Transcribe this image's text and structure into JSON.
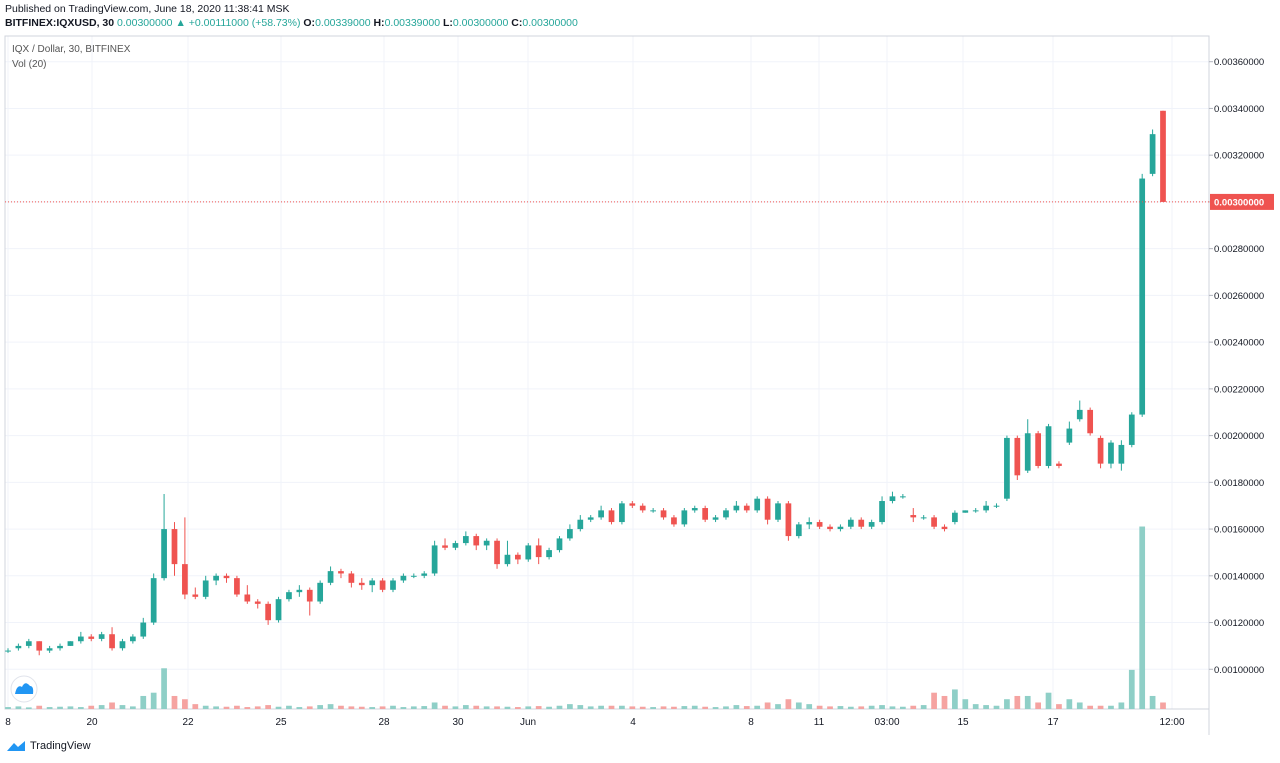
{
  "header": {
    "published": "Published on TradingView.com, June 18, 2020 11:38:41 MSK",
    "symbol": "BITFINEX:IQXUSD, 30",
    "last": "0.00300000",
    "arrow": "▲",
    "change": "+0.00111000 (+58.73%)",
    "o_label": "O:",
    "o_value": "0.00339000",
    "h_label": "H:",
    "h_value": "0.00339000",
    "l_label": "L:",
    "l_value": "0.00300000",
    "c_label": "C:",
    "c_value": "0.00300000"
  },
  "pane": {
    "title": "IQX / Dollar, 30, BITFINEX",
    "vol_label": "Vol (20)"
  },
  "footer": {
    "brand": "TradingView"
  },
  "colors": {
    "up": "#26a69a",
    "down": "#ef5350",
    "vol_up": "#8fcfc7",
    "vol_down": "#f5a3a1",
    "grid": "#f0f3fa",
    "price_line": "#ef5350"
  },
  "chart_data": {
    "type": "candlestick",
    "ylim": [
      0.00083,
      0.00371
    ],
    "y_ticks": [
      "0.00360000",
      "0.00340000",
      "0.00320000",
      "0.00300000",
      "0.00280000",
      "0.00260000",
      "0.00240000",
      "0.00220000",
      "0.00200000",
      "0.00180000",
      "0.00160000",
      "0.00140000",
      "0.00120000",
      "0.00100000"
    ],
    "current_price": "0.00300000",
    "x_ticks": [
      "8",
      "20",
      "22",
      "25",
      "28",
      "30",
      "Jun",
      "4",
      "8",
      "11",
      "03:00",
      "15",
      "17",
      "12:00"
    ],
    "candles": [
      [
        0.00108,
        0.00109,
        0.00107,
        0.00108
      ],
      [
        0.00109,
        0.00111,
        0.00108,
        0.0011
      ],
      [
        0.0011,
        0.00113,
        0.00109,
        0.00112
      ],
      [
        0.00112,
        0.00112,
        0.00106,
        0.00108
      ],
      [
        0.00108,
        0.0011,
        0.00107,
        0.00109
      ],
      [
        0.00109,
        0.00111,
        0.00108,
        0.0011
      ],
      [
        0.0011,
        0.00112,
        0.0011,
        0.00112
      ],
      [
        0.00112,
        0.00116,
        0.00111,
        0.00114
      ],
      [
        0.00114,
        0.00115,
        0.00112,
        0.00113
      ],
      [
        0.00113,
        0.00116,
        0.00112,
        0.00115
      ],
      [
        0.00115,
        0.00118,
        0.00108,
        0.00109
      ],
      [
        0.00109,
        0.00113,
        0.00108,
        0.00112
      ],
      [
        0.00112,
        0.00115,
        0.00111,
        0.00114
      ],
      [
        0.00114,
        0.00122,
        0.00113,
        0.0012
      ],
      [
        0.0012,
        0.00141,
        0.00119,
        0.00139
      ],
      [
        0.00139,
        0.00175,
        0.00138,
        0.0016
      ],
      [
        0.0016,
        0.00163,
        0.0014,
        0.00145
      ],
      [
        0.00145,
        0.00165,
        0.0013,
        0.00132
      ],
      [
        0.00132,
        0.00135,
        0.0013,
        0.00131
      ],
      [
        0.00131,
        0.0014,
        0.0013,
        0.00138
      ],
      [
        0.00138,
        0.00141,
        0.00136,
        0.0014
      ],
      [
        0.0014,
        0.00141,
        0.00137,
        0.00139
      ],
      [
        0.00139,
        0.0014,
        0.00131,
        0.00132
      ],
      [
        0.00132,
        0.00136,
        0.00128,
        0.00129
      ],
      [
        0.00129,
        0.0013,
        0.00126,
        0.00128
      ],
      [
        0.00128,
        0.00129,
        0.00119,
        0.00121
      ],
      [
        0.00121,
        0.00131,
        0.0012,
        0.0013
      ],
      [
        0.0013,
        0.00134,
        0.00129,
        0.00133
      ],
      [
        0.00133,
        0.00136,
        0.00131,
        0.00134
      ],
      [
        0.00134,
        0.00135,
        0.00123,
        0.00129
      ],
      [
        0.00129,
        0.00138,
        0.00128,
        0.00137
      ],
      [
        0.00137,
        0.00144,
        0.00136,
        0.00142
      ],
      [
        0.00142,
        0.00143,
        0.00139,
        0.00141
      ],
      [
        0.00141,
        0.00142,
        0.00135,
        0.00137
      ],
      [
        0.00137,
        0.00139,
        0.00134,
        0.00136
      ],
      [
        0.00136,
        0.00139,
        0.00133,
        0.00138
      ],
      [
        0.00138,
        0.00139,
        0.00133,
        0.00134
      ],
      [
        0.00134,
        0.00139,
        0.00133,
        0.00138
      ],
      [
        0.00138,
        0.00141,
        0.00137,
        0.0014
      ],
      [
        0.0014,
        0.00141,
        0.00139,
        0.0014
      ],
      [
        0.0014,
        0.00142,
        0.00139,
        0.00141
      ],
      [
        0.00141,
        0.00155,
        0.0014,
        0.00153
      ],
      [
        0.00153,
        0.00156,
        0.00151,
        0.00152
      ],
      [
        0.00152,
        0.00155,
        0.00151,
        0.00154
      ],
      [
        0.00154,
        0.00159,
        0.00153,
        0.00157
      ],
      [
        0.00157,
        0.00158,
        0.00151,
        0.00153
      ],
      [
        0.00153,
        0.00156,
        0.00151,
        0.00155
      ],
      [
        0.00155,
        0.00156,
        0.00143,
        0.00145
      ],
      [
        0.00145,
        0.00155,
        0.00144,
        0.00149
      ],
      [
        0.00149,
        0.0015,
        0.00145,
        0.00147
      ],
      [
        0.00147,
        0.00154,
        0.00146,
        0.00153
      ],
      [
        0.00153,
        0.00156,
        0.00145,
        0.00148
      ],
      [
        0.00148,
        0.00152,
        0.00147,
        0.00151
      ],
      [
        0.00151,
        0.00157,
        0.0015,
        0.00156
      ],
      [
        0.00156,
        0.00162,
        0.00155,
        0.0016
      ],
      [
        0.0016,
        0.00166,
        0.00159,
        0.00164
      ],
      [
        0.00164,
        0.00166,
        0.00163,
        0.00165
      ],
      [
        0.00165,
        0.0017,
        0.00164,
        0.00168
      ],
      [
        0.00168,
        0.00169,
        0.00162,
        0.00163
      ],
      [
        0.00163,
        0.00172,
        0.00162,
        0.00171
      ],
      [
        0.00171,
        0.00172,
        0.00169,
        0.0017
      ],
      [
        0.0017,
        0.00171,
        0.00167,
        0.00168
      ],
      [
        0.00168,
        0.00169,
        0.00167,
        0.00168
      ],
      [
        0.00168,
        0.00169,
        0.00164,
        0.00165
      ],
      [
        0.00165,
        0.00166,
        0.00161,
        0.00162
      ],
      [
        0.00162,
        0.00169,
        0.00161,
        0.00168
      ],
      [
        0.00168,
        0.0017,
        0.00167,
        0.00169
      ],
      [
        0.00169,
        0.0017,
        0.00163,
        0.00164
      ],
      [
        0.00164,
        0.00166,
        0.00163,
        0.00165
      ],
      [
        0.00165,
        0.00169,
        0.00164,
        0.00168
      ],
      [
        0.00168,
        0.00172,
        0.00167,
        0.0017
      ],
      [
        0.0017,
        0.00171,
        0.00167,
        0.00168
      ],
      [
        0.00168,
        0.00174,
        0.00167,
        0.00173
      ],
      [
        0.00173,
        0.00174,
        0.00162,
        0.00164
      ],
      [
        0.00164,
        0.00172,
        0.00163,
        0.00171
      ],
      [
        0.00171,
        0.00172,
        0.00155,
        0.00157
      ],
      [
        0.00157,
        0.00163,
        0.00156,
        0.00162
      ],
      [
        0.00162,
        0.00165,
        0.0016,
        0.00163
      ],
      [
        0.00163,
        0.00164,
        0.0016,
        0.00161
      ],
      [
        0.00161,
        0.00162,
        0.00159,
        0.0016
      ],
      [
        0.0016,
        0.00162,
        0.00159,
        0.00161
      ],
      [
        0.00161,
        0.00165,
        0.0016,
        0.00164
      ],
      [
        0.00164,
        0.00165,
        0.0016,
        0.00161
      ],
      [
        0.00161,
        0.00164,
        0.0016,
        0.00163
      ],
      [
        0.00163,
        0.00174,
        0.00162,
        0.00172
      ],
      [
        0.00172,
        0.00176,
        0.00171,
        0.00174
      ],
      [
        0.00174,
        0.00175,
        0.00173,
        0.00174
      ],
      [
        0.00166,
        0.00169,
        0.00163,
        0.00165
      ],
      [
        0.00165,
        0.00166,
        0.00164,
        0.00165
      ],
      [
        0.00165,
        0.00166,
        0.0016,
        0.00161
      ],
      [
        0.00161,
        0.00162,
        0.00159,
        0.0016
      ],
      [
        0.00163,
        0.00168,
        0.00162,
        0.00167
      ],
      [
        0.00167,
        0.00168,
        0.00167,
        0.00168
      ],
      [
        0.00168,
        0.00169,
        0.00167,
        0.00168
      ],
      [
        0.00168,
        0.00172,
        0.00167,
        0.0017
      ],
      [
        0.0017,
        0.00171,
        0.00169,
        0.0017
      ],
      [
        0.00173,
        0.002,
        0.00172,
        0.00199
      ],
      [
        0.00199,
        0.002,
        0.00181,
        0.00183
      ],
      [
        0.00185,
        0.00207,
        0.00184,
        0.00201
      ],
      [
        0.00201,
        0.00202,
        0.00186,
        0.00187
      ],
      [
        0.00187,
        0.00205,
        0.00186,
        0.00204
      ],
      [
        0.00188,
        0.00189,
        0.00186,
        0.00187
      ],
      [
        0.00197,
        0.00206,
        0.00196,
        0.00203
      ],
      [
        0.00207,
        0.00215,
        0.00206,
        0.00211
      ],
      [
        0.00211,
        0.00212,
        0.002,
        0.00201
      ],
      [
        0.00199,
        0.002,
        0.00186,
        0.00188
      ],
      [
        0.00188,
        0.00198,
        0.00186,
        0.00197
      ],
      [
        0.00188,
        0.00198,
        0.00185,
        0.00196
      ],
      [
        0.00196,
        0.0021,
        0.00195,
        0.00209
      ],
      [
        0.00209,
        0.00312,
        0.00208,
        0.0031
      ],
      [
        0.00312,
        0.00331,
        0.00311,
        0.00329
      ],
      [
        0.00339,
        0.00339,
        0.003,
        0.003
      ]
    ],
    "volume": [
      4.1e-08,
      5.5e-08,
      3.4e-08,
      6.9e-08,
      4.1e-08,
      4.8e-08,
      5.5e-08,
      4.1e-08,
      6.9e-08,
      8.3e-08,
      1.38e-07,
      8.3e-08,
      5.5e-08,
      2.76e-07,
      3.45e-07,
      8.62e-07,
      2.76e-07,
      2.07e-07,
      1.03e-07,
      6.9e-08,
      5.5e-08,
      4.8e-08,
      6.9e-08,
      4.1e-08,
      5.5e-08,
      8.3e-08,
      4.8e-08,
      6.9e-08,
      4.1e-08,
      5.5e-08,
      8.3e-08,
      1.03e-07,
      6.9e-08,
      5.5e-08,
      4.8e-08,
      4.1e-08,
      5.5e-08,
      6.9e-08,
      4.1e-08,
      5.5e-08,
      6.2e-08,
      1.38e-07,
      6.9e-08,
      5.5e-08,
      8.3e-08,
      6.9e-08,
      5.5e-08,
      5.5e-08,
      4.8e-08,
      4.1e-08,
      5.5e-08,
      6.2e-08,
      4.8e-08,
      6.9e-08,
      1.03e-07,
      8.3e-08,
      5.5e-08,
      6.9e-08,
      6.9e-08,
      6.9e-08,
      5.5e-08,
      4.8e-08,
      4.1e-08,
      5.5e-08,
      4.8e-08,
      6.2e-08,
      6.9e-08,
      4.8e-08,
      4.1e-08,
      5.5e-08,
      8.3e-08,
      6.2e-08,
      6.9e-08,
      1.38e-07,
      1.03e-07,
      2.07e-07,
      1.38e-07,
      1.03e-07,
      6.9e-08,
      5.5e-08,
      6.2e-08,
      4.8e-08,
      5.5e-08,
      6.9e-08,
      8.3e-08,
      5.5e-08,
      4.8e-08,
      6.9e-08,
      8.3e-08,
      3.45e-07,
      2.76e-07,
      4.14e-07,
      2.07e-07,
      1.03e-07,
      8.3e-08,
      6.9e-08,
      2.07e-07,
      2.76e-07,
      2.76e-07,
      1.38e-07,
      3.45e-07,
      1.03e-07,
      2.07e-07,
      1.38e-07,
      6.9e-08,
      6.9e-08,
      6.9e-08,
      1.38e-07,
      8.28e-07,
      3.862e-06,
      2.76e-07,
      1.38e-07
    ],
    "volume_scale_max": 4e-06
  }
}
